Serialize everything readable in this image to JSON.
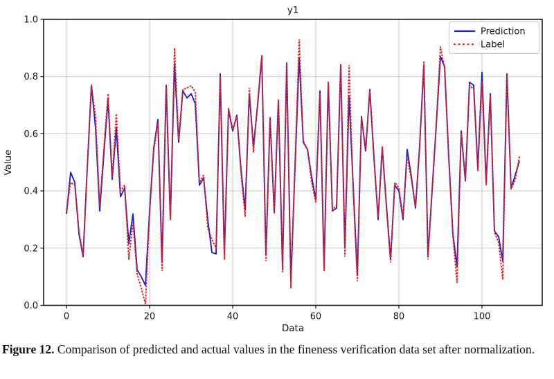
{
  "caption": {
    "label": "Figure 12.",
    "text": "Comparison of predicted and actual values in the fineness verification data set after normalization."
  },
  "colors": {
    "prediction": "#2222c2",
    "label": "#ea1f1f",
    "grid": "#c9c9c9",
    "spine": "#1a1a1a",
    "text": "#141414",
    "legend_border": "#cccccc",
    "background": "#ffffff"
  },
  "chart_data": {
    "type": "line",
    "title": "y1",
    "xlabel": "Data",
    "ylabel": "Value",
    "xlim": [
      -5.5,
      114.5
    ],
    "ylim": [
      0.0,
      1.0
    ],
    "x_ticks": [
      0,
      20,
      40,
      60,
      80,
      100
    ],
    "y_ticks": [
      0.0,
      0.2,
      0.4,
      0.6,
      0.8,
      1.0
    ],
    "grid": true,
    "legend_position": "upper right",
    "x_start": 0,
    "series": [
      {
        "name": "Prediction",
        "style": "solid",
        "values": [
          0.32,
          0.465,
          0.43,
          0.25,
          0.17,
          0.48,
          0.77,
          0.62,
          0.33,
          0.53,
          0.72,
          0.44,
          0.62,
          0.38,
          0.41,
          0.215,
          0.32,
          0.125,
          0.1,
          0.07,
          0.33,
          0.55,
          0.65,
          0.15,
          0.77,
          0.3,
          0.845,
          0.57,
          0.75,
          0.725,
          0.74,
          0.705,
          0.42,
          0.445,
          0.3,
          0.185,
          0.18,
          0.81,
          0.18,
          0.685,
          0.61,
          0.665,
          0.475,
          0.335,
          0.74,
          0.555,
          0.7,
          0.87,
          0.175,
          0.655,
          0.325,
          0.715,
          0.13,
          0.845,
          0.085,
          0.48,
          0.865,
          0.57,
          0.545,
          0.45,
          0.37,
          0.75,
          0.13,
          0.78,
          0.33,
          0.34,
          0.84,
          0.2,
          0.73,
          0.42,
          0.105,
          0.66,
          0.54,
          0.755,
          0.52,
          0.3,
          0.55,
          0.35,
          0.16,
          0.42,
          0.4,
          0.3,
          0.545,
          0.45,
          0.34,
          0.56,
          0.84,
          0.175,
          0.4,
          0.63,
          0.87,
          0.835,
          0.52,
          0.25,
          0.135,
          0.61,
          0.435,
          0.78,
          0.77,
          0.48,
          0.815,
          0.43,
          0.74,
          0.26,
          0.24,
          0.155,
          0.81,
          0.41,
          0.455,
          0.505
        ]
      },
      {
        "name": "Label",
        "style": "dotted",
        "values": [
          0.33,
          0.43,
          0.42,
          0.26,
          0.175,
          0.48,
          0.77,
          0.66,
          0.35,
          0.55,
          0.74,
          0.45,
          0.67,
          0.4,
          0.42,
          0.16,
          0.29,
          0.11,
          0.06,
          0.005,
          0.32,
          0.54,
          0.64,
          0.12,
          0.77,
          0.3,
          0.9,
          0.58,
          0.755,
          0.76,
          0.768,
          0.745,
          0.43,
          0.455,
          0.27,
          0.23,
          0.2,
          0.8,
          0.16,
          0.69,
          0.615,
          0.66,
          0.46,
          0.31,
          0.76,
          0.535,
          0.71,
          0.875,
          0.155,
          0.66,
          0.32,
          0.72,
          0.115,
          0.85,
          0.06,
          0.5,
          0.93,
          0.575,
          0.545,
          0.43,
          0.36,
          0.74,
          0.12,
          0.78,
          0.335,
          0.35,
          0.845,
          0.17,
          0.84,
          0.4,
          0.085,
          0.655,
          0.545,
          0.75,
          0.51,
          0.31,
          0.555,
          0.34,
          0.15,
          0.43,
          0.41,
          0.31,
          0.52,
          0.44,
          0.345,
          0.55,
          0.85,
          0.16,
          0.41,
          0.64,
          0.905,
          0.83,
          0.51,
          0.24,
          0.08,
          0.6,
          0.44,
          0.77,
          0.755,
          0.47,
          0.78,
          0.42,
          0.735,
          0.255,
          0.22,
          0.09,
          0.81,
          0.405,
          0.44,
          0.52
        ]
      }
    ]
  }
}
